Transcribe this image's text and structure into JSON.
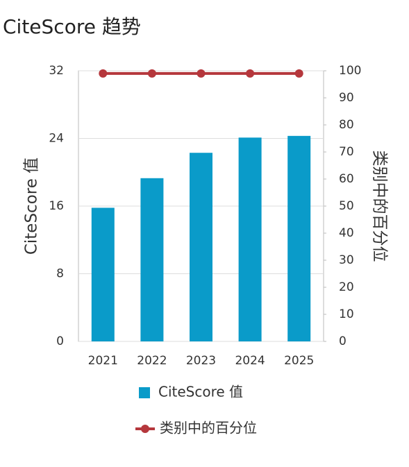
{
  "chart_data": {
    "type": "bar",
    "title": "CiteScore 趋势",
    "categories": [
      "2021",
      "2022",
      "2023",
      "2024",
      "2025"
    ],
    "y_label": "CiteScore 值",
    "y2_label": "类别中的百分位",
    "ylim": [
      0,
      32
    ],
    "yticks": [
      0,
      8,
      16,
      24,
      32
    ],
    "y2lim": [
      0,
      100
    ],
    "y2ticks": [
      0,
      10,
      20,
      30,
      40,
      50,
      60,
      70,
      80,
      90,
      100
    ],
    "grid": true,
    "series": [
      {
        "name": "CiteScore 值",
        "type": "bar",
        "color": "#0a9bc9",
        "values": [
          15.8,
          19.3,
          22.3,
          24.1,
          24.3
        ]
      },
      {
        "name": "类别中的百分位",
        "type": "line",
        "axis": "y2",
        "color": "#b5373c",
        "values": [
          99,
          99,
          99,
          99,
          99
        ]
      }
    ]
  }
}
